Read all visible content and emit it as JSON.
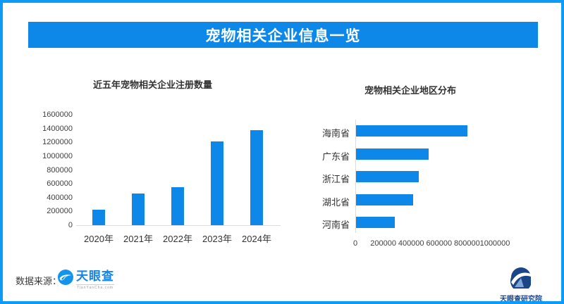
{
  "page": {
    "title": "宠物相关企业信息一览",
    "accent_color": "#0d87e8",
    "border_color": "#0d9bf5"
  },
  "chart_data": [
    {
      "type": "bar",
      "orientation": "vertical",
      "title": "近五年宠物相关企业注册数量",
      "categories": [
        "2020年",
        "2021年",
        "2022年",
        "2023年",
        "2024年"
      ],
      "values": [
        220000,
        460000,
        550000,
        1210000,
        1380000
      ],
      "ylim": [
        0,
        1600000
      ],
      "ytick_step": 200000,
      "bar_color": "#0d87e8",
      "grid": false,
      "legend": "none"
    },
    {
      "type": "bar",
      "orientation": "horizontal",
      "title": "宠物相关企业地区分布",
      "categories": [
        "海南省",
        "广东省",
        "浙江省",
        "湖北省",
        "河南省"
      ],
      "values": [
        800000,
        520000,
        450000,
        410000,
        280000
      ],
      "xlim": [
        0,
        1000000
      ],
      "xtick_step": 200000,
      "bar_color": "#0d87e8",
      "grid": false,
      "legend": "none"
    }
  ],
  "footer": {
    "source_label": "数据来源：",
    "tianyancha_name": "天眼查",
    "tianyancha_sub": "TianYanCha.com",
    "institute_name": "天眼查研究院"
  }
}
